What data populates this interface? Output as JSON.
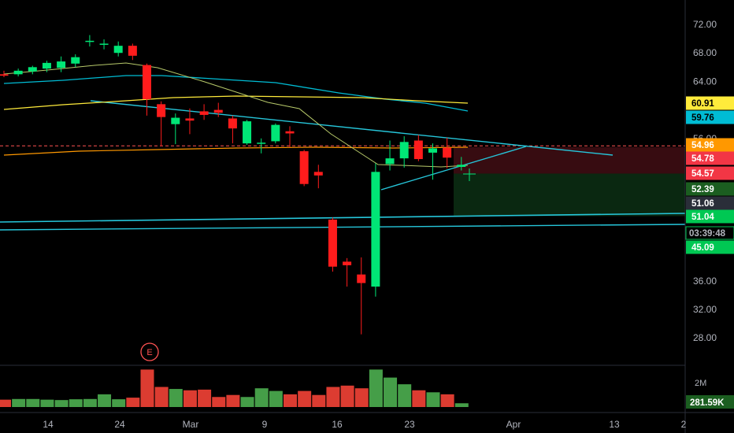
{
  "chart_data": {
    "type": "candlestick",
    "x_tick_labels": [
      "14",
      "24",
      "Mar",
      "9",
      "16",
      "23",
      "Apr",
      "13",
      "2"
    ],
    "y_ticks": [
      72.0,
      68.0,
      64.0,
      56.0,
      36.0,
      32.0,
      28.0
    ],
    "y_tick_labels": [
      "72.00",
      "68.00",
      "64.00",
      "56.00",
      "36.00",
      "32.00",
      "28.00"
    ],
    "ylim": [
      24.0,
      75.0
    ],
    "candles": [
      {
        "o": 65.0,
        "h": 65.5,
        "l": 64.6,
        "c": 64.8
      },
      {
        "o": 65.0,
        "h": 65.8,
        "l": 64.7,
        "c": 65.5
      },
      {
        "o": 65.4,
        "h": 66.2,
        "l": 65.0,
        "c": 66.0
      },
      {
        "o": 65.8,
        "h": 66.9,
        "l": 65.3,
        "c": 66.6
      },
      {
        "o": 65.9,
        "h": 67.5,
        "l": 65.3,
        "c": 66.8
      },
      {
        "o": 66.5,
        "h": 67.8,
        "l": 66.0,
        "c": 67.4
      },
      {
        "o": 69.6,
        "h": 70.5,
        "l": 68.9,
        "c": 69.7
      },
      {
        "o": 69.2,
        "h": 69.9,
        "l": 68.5,
        "c": 69.3
      },
      {
        "o": 68.0,
        "h": 69.6,
        "l": 67.5,
        "c": 69.0
      },
      {
        "o": 69.0,
        "h": 69.3,
        "l": 67.0,
        "c": 67.6
      },
      {
        "o": 66.3,
        "h": 66.5,
        "l": 59.2,
        "c": 61.5
      },
      {
        "o": 60.8,
        "h": 61.2,
        "l": 54.9,
        "c": 59.0
      },
      {
        "o": 58.0,
        "h": 59.5,
        "l": 55.2,
        "c": 58.9
      },
      {
        "o": 58.8,
        "h": 60.2,
        "l": 56.6,
        "c": 58.5
      },
      {
        "o": 59.8,
        "h": 60.8,
        "l": 58.6,
        "c": 59.3
      },
      {
        "o": 60.0,
        "h": 61.0,
        "l": 59.0,
        "c": 59.6
      },
      {
        "o": 58.8,
        "h": 59.2,
        "l": 55.3,
        "c": 57.4
      },
      {
        "o": 55.3,
        "h": 58.6,
        "l": 55.1,
        "c": 58.4
      },
      {
        "o": 55.3,
        "h": 56.0,
        "l": 53.9,
        "c": 55.4
      },
      {
        "o": 55.6,
        "h": 58.1,
        "l": 55.3,
        "c": 57.9
      },
      {
        "o": 57.0,
        "h": 57.7,
        "l": 54.8,
        "c": 56.7
      },
      {
        "o": 54.2,
        "h": 54.4,
        "l": 49.3,
        "c": 49.6
      },
      {
        "o": 51.3,
        "h": 52.3,
        "l": 49.0,
        "c": 50.8
      },
      {
        "o": 44.6,
        "h": 44.9,
        "l": 37.3,
        "c": 38.0
      },
      {
        "o": 38.7,
        "h": 39.2,
        "l": 35.2,
        "c": 38.2
      },
      {
        "o": 36.9,
        "h": 39.3,
        "l": 28.5,
        "c": 35.7
      },
      {
        "o": 35.2,
        "h": 52.5,
        "l": 33.8,
        "c": 51.3
      },
      {
        "o": 52.4,
        "h": 55.7,
        "l": 51.5,
        "c": 53.2
      },
      {
        "o": 53.2,
        "h": 56.3,
        "l": 51.9,
        "c": 55.5
      },
      {
        "o": 55.7,
        "h": 56.5,
        "l": 52.8,
        "c": 53.1
      },
      {
        "o": 54.0,
        "h": 55.3,
        "l": 50.2,
        "c": 54.6
      },
      {
        "o": 54.7,
        "h": 56.1,
        "l": 51.8,
        "c": 53.3
      },
      {
        "o": 52.0,
        "h": 53.4,
        "l": 51.5,
        "c": 52.3
      }
    ],
    "volume_ticks": [
      {
        "label": "2M",
        "value": 2000000
      }
    ],
    "volume": [
      0.55,
      0.6,
      0.6,
      0.55,
      0.52,
      0.58,
      0.6,
      0.95,
      0.58,
      0.7,
      2.8,
      1.5,
      1.35,
      1.25,
      1.3,
      0.75,
      0.9,
      0.75,
      1.4,
      1.2,
      0.95,
      1.2,
      0.9,
      1.5,
      1.6,
      1.4,
      2.8,
      2.2,
      1.7,
      1.25,
      1.1,
      0.95,
      0.28
    ],
    "earnings_marker": "E",
    "price_tags": [
      {
        "label": "60.91",
        "value": 60.91,
        "bg": "#ffeb3b",
        "fg": "#000000"
      },
      {
        "label": "59.76",
        "value": 59.76,
        "bg": "#00bcd4",
        "fg": "#000000"
      },
      {
        "label": "54.96",
        "value": 54.96,
        "bg": "#ff9800",
        "fg": "#ffffff"
      },
      {
        "label": "54.78",
        "value": 54.78,
        "bg": "#f23645",
        "fg": "#ffffff"
      },
      {
        "label": "54.57",
        "value": 54.57,
        "bg": "#f23645",
        "fg": "#ffffff"
      },
      {
        "label": "52.39",
        "value": 52.39,
        "bg": "#1b5e20",
        "fg": "#ffffff"
      },
      {
        "label": "51.06",
        "value": 51.06,
        "bg": "#2a2e39",
        "fg": "#ffffff"
      },
      {
        "label": "51.04",
        "value": 51.04,
        "bg": "#00c853",
        "fg": "#ffffff"
      },
      {
        "label": "45.09",
        "value": 45.09,
        "bg": "#00c853",
        "fg": "#ffffff"
      }
    ],
    "countdown": "03:39:48",
    "volume_tag": "281.59K",
    "colors": {
      "up": "#00e676",
      "down": "#ff1c1c",
      "axis_text": "#b2b5be",
      "background": "#000000"
    }
  }
}
